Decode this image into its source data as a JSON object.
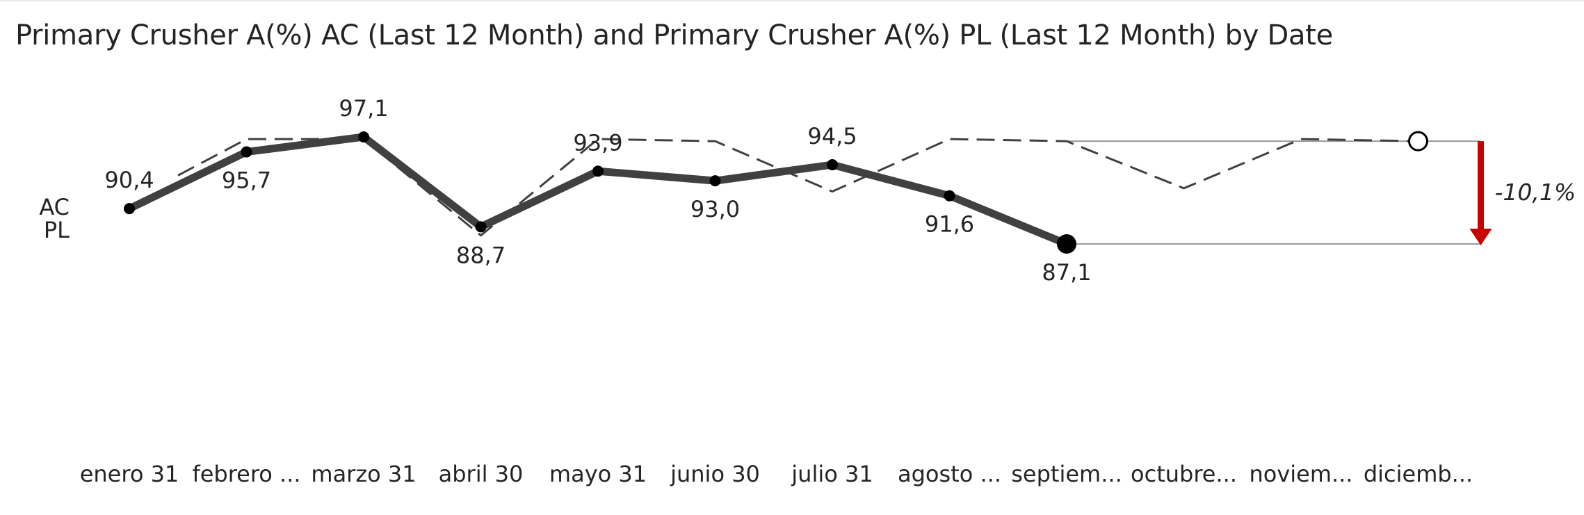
{
  "title": "Primary Crusher A(%) AC (Last 12 Month) and Primary Crusher A(%) PL (Last 12 Month) by Date",
  "row_labels": {
    "ac": "AC",
    "pl": "PL"
  },
  "variance": {
    "text": "-10,1%",
    "color": "#c80000"
  },
  "colors": {
    "ac_line": "#404040",
    "pl_line": "#404040",
    "point": "#000000",
    "reference": "#999999"
  },
  "chart_data": {
    "type": "line",
    "title": "Primary Crusher A(%) AC (Last 12 Month) and Primary Crusher A(%) PL (Last 12 Month) by Date",
    "categories": [
      "enero 31",
      "febrero ...",
      "marzo 31",
      "abril 30",
      "mayo 31",
      "junio 30",
      "julio 31",
      "agosto ...",
      "septiem...",
      "octubre...",
      "noviem...",
      "diciemb..."
    ],
    "series": [
      {
        "name": "AC",
        "style": "solid",
        "values": [
          90.4,
          95.7,
          97.1,
          88.7,
          93.9,
          93.0,
          94.5,
          91.6,
          87.1,
          null,
          null,
          null
        ],
        "labels": [
          "90,4",
          "95,7",
          "97,1",
          "88,7",
          "93,9",
          "93,0",
          "94,5",
          "91,6",
          "87,1",
          "",
          "",
          ""
        ]
      },
      {
        "name": "PL",
        "style": "dashed",
        "values": [
          null,
          96.9,
          96.9,
          87.9,
          96.9,
          96.7,
          92.0,
          96.9,
          96.7,
          92.3,
          96.9,
          96.7
        ]
      }
    ],
    "ylim": [
      80,
      100
    ],
    "variance_pct": -10.1,
    "variance_label": "-10,1%",
    "grid": false,
    "legend": "left"
  }
}
